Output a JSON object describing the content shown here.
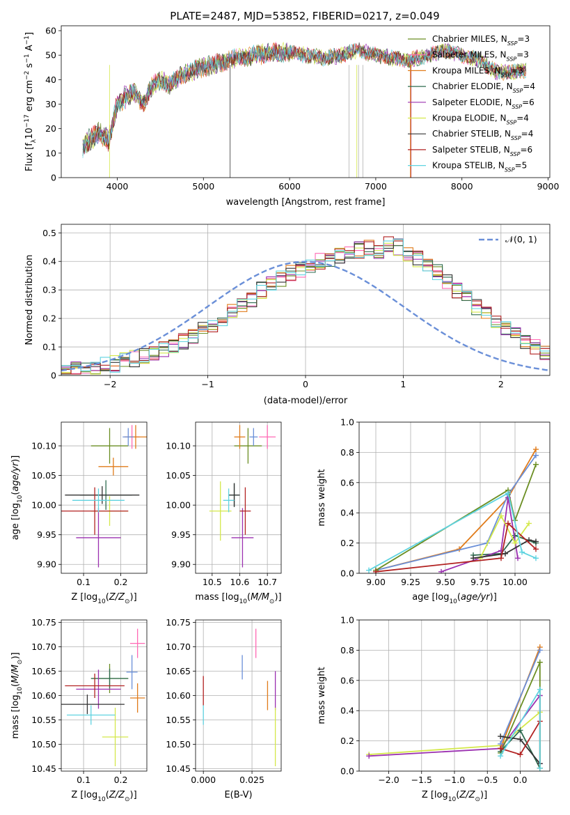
{
  "figure": {
    "title": "PLATE=2487, MJD=53852, FIBERID=0217, z=0.049"
  },
  "models": [
    {
      "name": "Chabrier MILES",
      "nssp": "3",
      "color": "#6b8e23"
    },
    {
      "name": "Salpeter MILES",
      "nssp": "3",
      "color": "#ff69b4"
    },
    {
      "name": "Kroupa MILES",
      "nssp": "3",
      "color": "#e07b1a"
    },
    {
      "name": "Chabrier ELODIE",
      "nssp": "4",
      "color": "#2e6b4f"
    },
    {
      "name": "Salpeter ELODIE",
      "nssp": "6",
      "color": "#9b30b0"
    },
    {
      "name": "Kroupa ELODIE",
      "nssp": "4",
      "color": "#d4e84a"
    },
    {
      "name": "Chabrier STELIB",
      "nssp": "4",
      "color": "#333333"
    },
    {
      "name": "Salpeter STELIB",
      "nssp": "6",
      "color": "#b22222"
    },
    {
      "name": "Kroupa STELIB",
      "nssp": "5",
      "color": "#5fd3e0"
    }
  ],
  "chart_data": [
    {
      "id": "spectrum",
      "type": "line",
      "xlabel": "wavelength [Angstrom, rest frame]",
      "ylabel": "Flux [f_λ 10^-17 erg cm^-2 s^-1 A^-1]",
      "xlim": [
        3350,
        9020
      ],
      "ylim": [
        0,
        62
      ],
      "xticks": [
        4000,
        5000,
        6000,
        7000,
        8000,
        9000
      ],
      "yticks": [
        0,
        10,
        20,
        30,
        40,
        50,
        60
      ],
      "grid": false,
      "legend": "top-right",
      "x_range": [
        3600,
        8750
      ],
      "spectrum_anchor_points": {
        "x": [
          3600,
          3700,
          3800,
          3900,
          3950,
          4000,
          4100,
          4200,
          4300,
          4400,
          4500,
          4600,
          4800,
          5000,
          5200,
          5400,
          5600,
          5800,
          6000,
          6200,
          6400,
          6600,
          6800,
          7000,
          7200,
          7400,
          7600,
          7800,
          8000,
          8200,
          8400,
          8600,
          8750
        ],
        "y": [
          13,
          16,
          18,
          15,
          22,
          30,
          33,
          35,
          30,
          37,
          40,
          38,
          43,
          45,
          47,
          49,
          50,
          51,
          51,
          50,
          49,
          50,
          52,
          50,
          49,
          48,
          50,
          52,
          50,
          48,
          43,
          43,
          44
        ]
      }
    },
    {
      "id": "residuals",
      "type": "step",
      "xlabel": "(data-model)/error",
      "ylabel": "Normed distribution",
      "xlim": [
        -2.5,
        2.5
      ],
      "ylim": [
        0,
        0.53
      ],
      "xticks": [
        -2,
        -1,
        0,
        1,
        2
      ],
      "xtick_labels": [
        "−2",
        "−1",
        "0",
        "1",
        "2"
      ],
      "yticks": [
        0.0,
        0.1,
        0.2,
        0.3,
        0.4,
        0.5
      ],
      "grid": true,
      "legend": "top-right",
      "gaussian_label": "𝒩(0, 1)",
      "gaussian_color": "#6a8fd8",
      "bin_width": 0.1,
      "bin_start": -2.5,
      "base_hist": [
        0.015,
        0.02,
        0.025,
        0.03,
        0.035,
        0.04,
        0.05,
        0.06,
        0.07,
        0.08,
        0.09,
        0.1,
        0.12,
        0.14,
        0.16,
        0.18,
        0.2,
        0.22,
        0.25,
        0.27,
        0.3,
        0.32,
        0.34,
        0.36,
        0.37,
        0.38,
        0.4,
        0.41,
        0.42,
        0.44,
        0.44,
        0.45,
        0.44,
        0.46,
        0.45,
        0.43,
        0.41,
        0.39,
        0.36,
        0.33,
        0.3,
        0.27,
        0.24,
        0.21,
        0.19,
        0.16,
        0.14,
        0.12,
        0.1,
        0.08
      ]
    },
    {
      "id": "age_vs_Z",
      "type": "errorbar",
      "xlabel": "Z [log10(Z/Z⊙)]",
      "ylabel": "age [log10(age/yr)]",
      "xlim": [
        0.04,
        0.27
      ],
      "ylim": [
        9.885,
        10.14
      ],
      "xticks": [
        0.1,
        0.2
      ],
      "xtick_labels": [
        "0.1",
        "0.2"
      ],
      "yticks": [
        9.9,
        9.95,
        10.0,
        10.05,
        10.1
      ],
      "ytick_labels": [
        "9.90",
        "9.95",
        "10.00",
        "10.05",
        "10.10"
      ],
      "grid": true,
      "points": [
        {
          "x": 0.17,
          "xerr": 0.05,
          "y": 10.1,
          "yerr": 0.03,
          "c": "#6b8e23"
        },
        {
          "x": 0.23,
          "xerr": 0.02,
          "y": 10.115,
          "yerr": 0.02,
          "c": "#ff69b4"
        },
        {
          "x": 0.24,
          "xerr": 0.03,
          "y": 10.115,
          "yerr": 0.02,
          "c": "#e07b1a"
        },
        {
          "x": 0.16,
          "xerr": 0.07,
          "y": 10.017,
          "yerr": 0.025,
          "c": "#2e6b4f"
        },
        {
          "x": 0.14,
          "xerr": 0.06,
          "y": 9.945,
          "yerr": 0.05,
          "c": "#9b30b0"
        },
        {
          "x": 0.17,
          "xerr": 0.05,
          "y": 9.99,
          "yerr": 0.025,
          "c": "#d4e84a"
        },
        {
          "x": 0.15,
          "xerr": 0.1,
          "y": 10.017,
          "yerr": 0.015,
          "c": "#333333"
        },
        {
          "x": 0.13,
          "xerr": 0.09,
          "y": 9.99,
          "yerr": 0.04,
          "c": "#b22222"
        },
        {
          "x": 0.14,
          "xerr": 0.07,
          "y": 10.008,
          "yerr": 0.02,
          "c": "#5fd3e0"
        },
        {
          "x": 0.22,
          "xerr": 0.015,
          "y": 10.115,
          "yerr": 0.015,
          "c": "#6a8fd8"
        },
        {
          "x": 0.18,
          "xerr": 0.04,
          "y": 10.065,
          "yerr": 0.015,
          "c": "#e07b1a"
        }
      ]
    },
    {
      "id": "age_vs_mass",
      "type": "errorbar",
      "xlabel": "mass [log10(M/M⊙)]",
      "xlim": [
        10.44,
        10.75
      ],
      "ylim": [
        9.885,
        10.14
      ],
      "xticks": [
        10.5,
        10.6,
        10.7
      ],
      "xtick_labels": [
        "10.5",
        "10.6",
        "10.7"
      ],
      "yticks": [
        9.9,
        9.95,
        10.0,
        10.05,
        10.1
      ],
      "ytick_labels": [
        "9.90",
        "9.95",
        "10.00",
        "10.05",
        "10.10"
      ],
      "grid": true,
      "points": [
        {
          "x": 10.63,
          "xerr": 0.05,
          "y": 10.1,
          "yerr": 0.03,
          "c": "#6b8e23"
        },
        {
          "x": 10.7,
          "xerr": 0.03,
          "y": 10.115,
          "yerr": 0.02,
          "c": "#ff69b4"
        },
        {
          "x": 10.6,
          "xerr": 0.02,
          "y": 10.115,
          "yerr": 0.02,
          "c": "#e07b1a"
        },
        {
          "x": 10.58,
          "xerr": 0.02,
          "y": 10.017,
          "yerr": 0.02,
          "c": "#2e6b4f"
        },
        {
          "x": 10.61,
          "xerr": 0.04,
          "y": 9.945,
          "yerr": 0.05,
          "c": "#9b30b0"
        },
        {
          "x": 10.53,
          "xerr": 0.04,
          "y": 9.99,
          "yerr": 0.05,
          "c": "#d4e84a"
        },
        {
          "x": 10.58,
          "xerr": 0.02,
          "y": 10.017,
          "yerr": 0.02,
          "c": "#333333"
        },
        {
          "x": 10.62,
          "xerr": 0.02,
          "y": 9.99,
          "yerr": 0.04,
          "c": "#b22222"
        },
        {
          "x": 10.56,
          "xerr": 0.02,
          "y": 10.008,
          "yerr": 0.02,
          "c": "#5fd3e0"
        },
        {
          "x": 10.65,
          "xerr": 0.015,
          "y": 10.115,
          "yerr": 0.015,
          "c": "#6a8fd8"
        }
      ]
    },
    {
      "id": "weight_vs_age",
      "type": "line",
      "xlabel": "age [log10(age/yr)]",
      "ylabel": "mass weight",
      "xlim": [
        8.88,
        10.25
      ],
      "ylim": [
        0,
        1
      ],
      "xticks": [
        9.0,
        9.25,
        9.5,
        9.75,
        10.0
      ],
      "xtick_labels": [
        "9.00",
        "9.25",
        "9.50",
        "9.75",
        "10.00"
      ],
      "yticks": [
        0.0,
        0.2,
        0.4,
        0.6,
        0.8,
        1.0
      ],
      "ytick_labels": [
        "0.0",
        "0.2",
        "0.4",
        "0.6",
        "0.8",
        "1.0"
      ],
      "grid": true,
      "series": [
        {
          "c": "#e07b1a",
          "x": [
            9.0,
            9.6,
            9.95,
            10.15
          ],
          "y": [
            0.02,
            0.16,
            0.5,
            0.82
          ]
        },
        {
          "c": "#6a8fd8",
          "x": [
            9.0,
            9.8,
            9.95,
            10.15
          ],
          "y": [
            0.02,
            0.2,
            0.52,
            0.78
          ]
        },
        {
          "c": "#6b8e23",
          "x": [
            9.0,
            9.95,
            10.0,
            10.15
          ],
          "y": [
            0.02,
            0.55,
            0.35,
            0.72
          ]
        },
        {
          "c": "#2e6b4f",
          "x": [
            9.7,
            9.9,
            10.0,
            10.15
          ],
          "y": [
            0.12,
            0.13,
            0.25,
            0.2
          ]
        },
        {
          "c": "#9b30b0",
          "x": [
            9.47,
            9.9,
            9.95,
            10.02
          ],
          "y": [
            0.01,
            0.15,
            0.5,
            0.1
          ]
        },
        {
          "c": "#d4e84a",
          "x": [
            9.75,
            9.9,
            10.0,
            10.1
          ],
          "y": [
            0.1,
            0.38,
            0.2,
            0.33
          ]
        },
        {
          "c": "#333333",
          "x": [
            9.7,
            9.93,
            10.1,
            10.15
          ],
          "y": [
            0.1,
            0.13,
            0.22,
            0.21
          ]
        },
        {
          "c": "#b22222",
          "x": [
            9.0,
            9.9,
            9.95,
            10.15
          ],
          "y": [
            0.01,
            0.1,
            0.33,
            0.16
          ]
        },
        {
          "c": "#5fd3e0",
          "x": [
            8.95,
            9.95,
            10.05,
            10.15
          ],
          "y": [
            0.02,
            0.53,
            0.14,
            0.1
          ]
        }
      ]
    },
    {
      "id": "mass_vs_Z",
      "type": "errorbar",
      "xlabel": "Z [log10(Z/Z⊙)]",
      "ylabel": "mass [log10(M/M⊙)]",
      "xlim": [
        0.04,
        0.27
      ],
      "ylim": [
        10.445,
        10.755
      ],
      "xticks": [
        0.1,
        0.2
      ],
      "xtick_labels": [
        "0.1",
        "0.2"
      ],
      "yticks": [
        10.45,
        10.5,
        10.55,
        10.6,
        10.65,
        10.7,
        10.75
      ],
      "ytick_labels": [
        "10.45",
        "10.50",
        "10.55",
        "10.60",
        "10.65",
        "10.70",
        "10.75"
      ],
      "grid": true,
      "points": [
        {
          "x": 0.17,
          "xerr": 0.05,
          "y": 10.635,
          "yerr": 0.03,
          "c": "#6b8e23"
        },
        {
          "x": 0.245,
          "xerr": 0.02,
          "y": 10.707,
          "yerr": 0.03,
          "c": "#ff69b4"
        },
        {
          "x": 0.245,
          "xerr": 0.02,
          "y": 10.595,
          "yerr": 0.03,
          "c": "#e07b1a"
        },
        {
          "x": 0.17,
          "xerr": 0.05,
          "y": 10.635,
          "yerr": 0.02,
          "c": "#2e6b4f"
        },
        {
          "x": 0.14,
          "xerr": 0.06,
          "y": 10.613,
          "yerr": 0.04,
          "c": "#9b30b0"
        },
        {
          "x": 0.185,
          "xerr": 0.035,
          "y": 10.515,
          "yerr": 0.06,
          "c": "#d4e84a"
        },
        {
          "x": 0.11,
          "xerr": 0.1,
          "y": 10.582,
          "yerr": 0.02,
          "c": "#333333"
        },
        {
          "x": 0.13,
          "xerr": 0.08,
          "y": 10.62,
          "yerr": 0.025,
          "c": "#b22222"
        },
        {
          "x": 0.12,
          "xerr": 0.065,
          "y": 10.56,
          "yerr": 0.02,
          "c": "#5fd3e0"
        },
        {
          "x": 0.23,
          "xerr": 0.015,
          "y": 10.648,
          "yerr": 0.035,
          "c": "#6a8fd8"
        }
      ]
    },
    {
      "id": "mass_vs_ebv",
      "type": "errorbar",
      "xlabel": "E(B-V)",
      "xlim": [
        -0.004,
        0.04
      ],
      "ylim": [
        10.445,
        10.755
      ],
      "xticks": [
        0.0,
        0.025
      ],
      "xtick_labels": [
        "0.000",
        "0.025"
      ],
      "yticks": [
        10.45,
        10.5,
        10.55,
        10.6,
        10.65,
        10.7,
        10.75
      ],
      "ytick_labels": [
        "10.45",
        "10.50",
        "10.55",
        "10.60",
        "10.65",
        "10.70",
        "10.75"
      ],
      "grid": true,
      "points": [
        {
          "x": 0.027,
          "xerr": 0,
          "y": 10.707,
          "yerr": 0.03,
          "c": "#ff69b4"
        },
        {
          "x": 0.033,
          "xerr": 0,
          "y": 10.6,
          "yerr": 0.03,
          "c": "#e07b1a"
        },
        {
          "x": 0.037,
          "xerr": 0,
          "y": 10.61,
          "yerr": 0.04,
          "c": "#9b30b0"
        },
        {
          "x": 0.037,
          "xerr": 0,
          "y": 10.515,
          "yerr": 0.06,
          "c": "#d4e84a"
        },
        {
          "x": 0.0,
          "xerr": 0,
          "y": 10.61,
          "yerr": 0.03,
          "c": "#b22222"
        },
        {
          "x": 0.0,
          "xerr": 0,
          "y": 10.56,
          "yerr": 0.02,
          "c": "#5fd3e0"
        },
        {
          "x": 0.02,
          "xerr": 0,
          "y": 10.658,
          "yerr": 0.025,
          "c": "#6a8fd8"
        }
      ]
    },
    {
      "id": "weight_vs_Z",
      "type": "line",
      "xlabel": "Z [log10(Z/Z⊙)]",
      "ylabel": "mass weight",
      "xlim": [
        -2.45,
        0.45
      ],
      "ylim": [
        0,
        1
      ],
      "xticks": [
        -2.0,
        -1.5,
        -1.0,
        -0.5,
        0.0
      ],
      "xtick_labels": [
        "−2.0",
        "−1.5",
        "−1.0",
        "−0.5",
        "0.0"
      ],
      "yticks": [
        0.0,
        0.2,
        0.4,
        0.6,
        0.8,
        1.0
      ],
      "ytick_labels": [
        "0.0",
        "0.2",
        "0.4",
        "0.6",
        "0.8",
        "1.0"
      ],
      "grid": true,
      "series": [
        {
          "c": "#d4e84a",
          "x": [
            -2.3,
            -0.3,
            0.3,
            0.3
          ],
          "y": [
            0.11,
            0.17,
            0.39,
            0.02
          ]
        },
        {
          "c": "#9b30b0",
          "x": [
            -2.3,
            -0.3,
            0.3,
            0.3
          ],
          "y": [
            0.1,
            0.15,
            0.5,
            0.05
          ]
        },
        {
          "c": "#e07b1a",
          "x": [
            -0.3,
            0.3
          ],
          "y": [
            0.15,
            0.82
          ]
        },
        {
          "c": "#6a8fd8",
          "x": [
            -0.3,
            0.3
          ],
          "y": [
            0.18,
            0.8
          ]
        },
        {
          "c": "#6b8e23",
          "x": [
            -0.3,
            0.3,
            0.3
          ],
          "y": [
            0.12,
            0.72,
            0.02
          ]
        },
        {
          "c": "#2e6b4f",
          "x": [
            -0.3,
            0.0,
            0.3
          ],
          "y": [
            0.13,
            0.27,
            0.02
          ]
        },
        {
          "c": "#333333",
          "x": [
            -0.3,
            0.0,
            0.3
          ],
          "y": [
            0.23,
            0.21,
            0.05
          ]
        },
        {
          "c": "#b22222",
          "x": [
            -0.3,
            0.0,
            0.3
          ],
          "y": [
            0.15,
            0.11,
            0.33
          ]
        },
        {
          "c": "#5fd3e0",
          "x": [
            -0.3,
            0.3,
            0.3
          ],
          "y": [
            0.1,
            0.54,
            0.02
          ]
        }
      ]
    }
  ]
}
